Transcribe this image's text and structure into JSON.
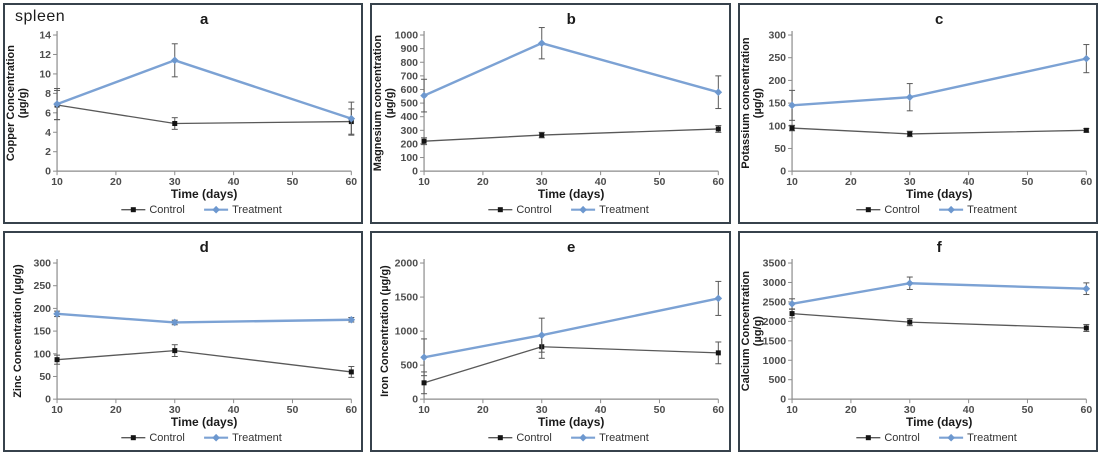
{
  "figure_label": "spleen",
  "colors": {
    "panel_border": "#37424c",
    "axis": "#8c8c8c",
    "tick_text": "#4d4d4d",
    "label_text": "#1a1a1a",
    "control_line": "#595959",
    "control_marker": "#141414",
    "treatment_line": "#7ca2d4",
    "treatment_marker": "#6d98cf",
    "error_bar": "#595959"
  },
  "chart_data": [
    {
      "type": "line",
      "panel_letter": "a",
      "ylabel_lines": [
        "Copper Concentration",
        "(µg/g)"
      ],
      "xlabel": "Time (days)",
      "x": [
        10,
        30,
        60
      ],
      "x_ticks": [
        10,
        20,
        30,
        40,
        50,
        60
      ],
      "xlim": [
        10,
        60
      ],
      "ylim": [
        0,
        14
      ],
      "ytick_step": 2,
      "legend_position": "bottom",
      "series": [
        {
          "name": "Control",
          "values": [
            6.8,
            4.9,
            5.1
          ],
          "error": [
            1.5,
            0.6,
            1.3
          ]
        },
        {
          "name": "Treatment",
          "values": [
            6.9,
            11.4,
            5.4
          ],
          "error": [
            1.6,
            1.7,
            1.7
          ]
        }
      ]
    },
    {
      "type": "line",
      "panel_letter": "b",
      "ylabel_lines": [
        "Magnesium concentration",
        "(µg/g)"
      ],
      "xlabel": "Time (days)",
      "x": [
        10,
        30,
        60
      ],
      "x_ticks": [
        10,
        20,
        30,
        40,
        50,
        60
      ],
      "xlim": [
        10,
        60
      ],
      "ylim": [
        0,
        1000
      ],
      "ytick_step": 100,
      "legend_position": "bottom",
      "series": [
        {
          "name": "Control",
          "values": [
            220,
            265,
            310
          ],
          "error": [
            25,
            20,
            25
          ]
        },
        {
          "name": "Treatment",
          "values": [
            555,
            940,
            580
          ],
          "error": [
            120,
            115,
            120
          ]
        }
      ]
    },
    {
      "type": "line",
      "panel_letter": "c",
      "ylabel_lines": [
        "Potassium concentration",
        "(µg/g)"
      ],
      "xlabel": "Time (days)",
      "x": [
        10,
        30,
        60
      ],
      "x_ticks": [
        10,
        20,
        30,
        40,
        50,
        60
      ],
      "xlim": [
        10,
        60
      ],
      "ylim": [
        0,
        300
      ],
      "ytick_step": 50,
      "legend_position": "bottom",
      "series": [
        {
          "name": "Control",
          "values": [
            95,
            82,
            90
          ],
          "error": [
            6,
            6,
            4
          ]
        },
        {
          "name": "Treatment",
          "values": [
            145,
            163,
            248
          ],
          "error": [
            33,
            30,
            31
          ]
        }
      ]
    },
    {
      "type": "line",
      "panel_letter": "d",
      "ylabel_lines": [
        "Zinc Concentration (µg/g)"
      ],
      "xlabel": "Time (days)",
      "x": [
        10,
        30,
        60
      ],
      "x_ticks": [
        10,
        20,
        30,
        40,
        50,
        60
      ],
      "xlim": [
        10,
        60
      ],
      "ylim": [
        0,
        300
      ],
      "ytick_step": 50,
      "legend_position": "bottom",
      "series": [
        {
          "name": "Control",
          "values": [
            87,
            107,
            60
          ],
          "error": [
            10,
            13,
            12
          ]
        },
        {
          "name": "Treatment",
          "values": [
            188,
            169,
            175
          ],
          "error": [
            6,
            5,
            5
          ]
        }
      ]
    },
    {
      "type": "line",
      "panel_letter": "e",
      "ylabel_lines": [
        "Iron Concentration (µg/g)"
      ],
      "xlabel": "Time (days)",
      "x": [
        10,
        30,
        60
      ],
      "x_ticks": [
        10,
        20,
        30,
        40,
        50,
        60
      ],
      "xlim": [
        10,
        60
      ],
      "ylim": [
        0,
        2000
      ],
      "ytick_step": 500,
      "legend_position": "bottom",
      "series": [
        {
          "name": "Control",
          "values": [
            240,
            770,
            680
          ],
          "error": [
            160,
            170,
            160
          ]
        },
        {
          "name": "Treatment",
          "values": [
            615,
            940,
            1480
          ],
          "error": [
            270,
            250,
            250
          ]
        }
      ]
    },
    {
      "type": "line",
      "panel_letter": "f",
      "ylabel_lines": [
        "Calcium Concentration",
        "(µg/g)"
      ],
      "xlabel": "Time (days)",
      "x": [
        10,
        30,
        60
      ],
      "x_ticks": [
        10,
        20,
        30,
        40,
        50,
        60
      ],
      "xlim": [
        10,
        60
      ],
      "ylim": [
        0,
        3500
      ],
      "ytick_step": 500,
      "legend_position": "bottom",
      "series": [
        {
          "name": "Control",
          "values": [
            2200,
            1980,
            1830
          ],
          "error": [
            110,
            90,
            90
          ]
        },
        {
          "name": "Treatment",
          "values": [
            2450,
            2980,
            2840
          ],
          "error": [
            130,
            160,
            150
          ]
        }
      ]
    }
  ]
}
